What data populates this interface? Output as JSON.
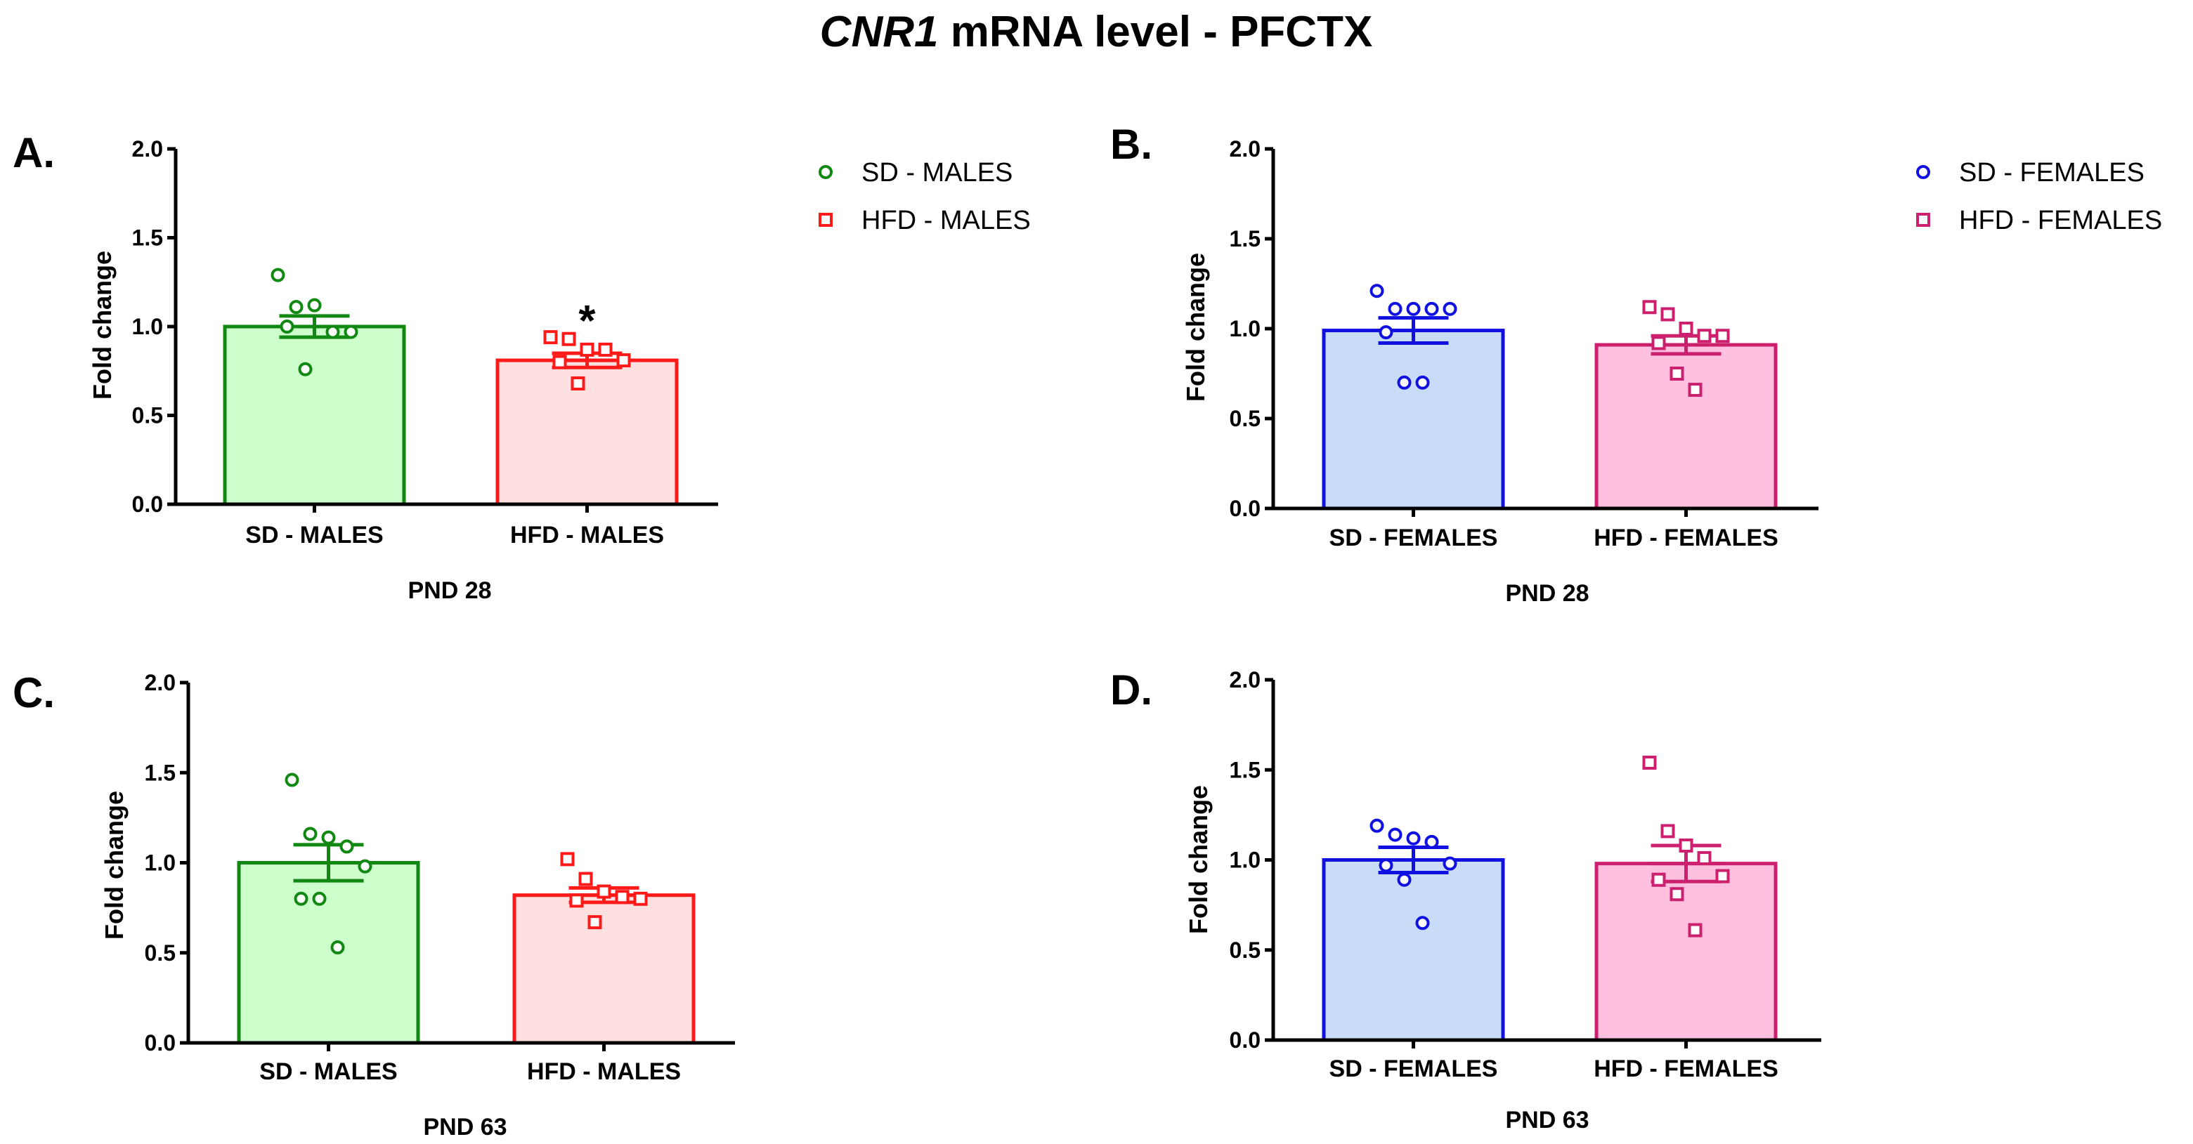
{
  "title": {
    "prefix": "CNR1",
    "suffix": " mRNA level - PFCTX"
  },
  "legends": [
    {
      "entries": [
        {
          "label": "SD - MALES",
          "color": "#118811",
          "marker": "circle"
        },
        {
          "label": "HFD - MALES",
          "color": "#ff1a1a",
          "marker": "square"
        }
      ]
    },
    {
      "entries": [
        {
          "label": "SD - FEMALES",
          "color": "#1010e0",
          "marker": "circle"
        },
        {
          "label": "HFD - FEMALES",
          "color": "#cc1f6e",
          "marker": "square"
        }
      ]
    }
  ],
  "chart_data": [
    {
      "panel": "A.",
      "type": "bar",
      "xlabel": "PND 28",
      "ylabel": "Fold change",
      "ylim": [
        0,
        2.0
      ],
      "yticks": [
        "0.0",
        "0.5",
        "1.0",
        "1.5",
        "2.0"
      ],
      "categories": [
        "SD - MALES",
        "HFD - MALES"
      ],
      "values": [
        1.0,
        0.81
      ],
      "sem": [
        0.06,
        0.04
      ],
      "points": [
        [
          1.29,
          1.11,
          1.12,
          0.97,
          0.97,
          1.0,
          0.76
        ],
        [
          0.94,
          0.93,
          0.87,
          0.87,
          0.81,
          0.8,
          0.68
        ]
      ],
      "fill_colors": [
        "#ccffcc",
        "#ffe0e0"
      ],
      "edge_colors": [
        "#118811",
        "#ff1a1a"
      ],
      "markers": [
        "circle",
        "square"
      ],
      "annotations": [
        {
          "category": "HFD - MALES",
          "text": "*"
        }
      ]
    },
    {
      "panel": "B.",
      "type": "bar",
      "xlabel": "PND 28",
      "ylabel": "Fold change",
      "ylim": [
        0,
        2.0
      ],
      "yticks": [
        "0.0",
        "0.5",
        "1.0",
        "1.5",
        "2.0"
      ],
      "categories": [
        "SD - FEMALES",
        "HFD - FEMALES"
      ],
      "values": [
        0.99,
        0.91
      ],
      "sem": [
        0.07,
        0.05
      ],
      "points": [
        [
          1.21,
          1.11,
          1.11,
          1.11,
          1.11,
          0.98,
          0.7,
          0.7
        ],
        [
          1.12,
          1.08,
          1.0,
          0.96,
          0.96,
          0.92,
          0.75,
          0.66
        ]
      ],
      "fill_colors": [
        "#c8dcf8",
        "#ffc0e0"
      ],
      "edge_colors": [
        "#1010e0",
        "#cc1f6e"
      ],
      "markers": [
        "circle",
        "square"
      ],
      "annotations": []
    },
    {
      "panel": "C.",
      "type": "bar",
      "xlabel": "PND 63",
      "ylabel": "Fold change",
      "ylim": [
        0,
        2.0
      ],
      "yticks": [
        "0.0",
        "0.5",
        "1.0",
        "1.5",
        "2.0"
      ],
      "categories": [
        "SD - MALES",
        "HFD - MALES"
      ],
      "values": [
        1.0,
        0.82
      ],
      "sem": [
        0.1,
        0.04
      ],
      "points": [
        [
          1.46,
          1.16,
          1.14,
          1.09,
          0.98,
          0.8,
          0.8,
          0.53
        ],
        [
          1.02,
          0.91,
          0.84,
          0.81,
          0.8,
          0.79,
          0.67
        ]
      ],
      "fill_colors": [
        "#ccffcc",
        "#ffe0e0"
      ],
      "edge_colors": [
        "#118811",
        "#ff1a1a"
      ],
      "markers": [
        "circle",
        "square"
      ],
      "annotations": []
    },
    {
      "panel": "D.",
      "type": "bar",
      "xlabel": "PND 63",
      "ylabel": "Fold change",
      "ylim": [
        0,
        2.0
      ],
      "yticks": [
        "0.0",
        "0.5",
        "1.0",
        "1.5",
        "2.0"
      ],
      "categories": [
        "SD - FEMALES",
        "HFD - FEMALES"
      ],
      "values": [
        1.0,
        0.98
      ],
      "sem": [
        0.07,
        0.1
      ],
      "points": [
        [
          1.19,
          1.14,
          1.12,
          1.1,
          0.98,
          0.97,
          0.89,
          0.65
        ],
        [
          1.54,
          1.16,
          1.08,
          1.01,
          0.91,
          0.89,
          0.81,
          0.61
        ]
      ],
      "fill_colors": [
        "#c8dcf8",
        "#ffc0e0"
      ],
      "edge_colors": [
        "#1010e0",
        "#cc1f6e"
      ],
      "markers": [
        "circle",
        "square"
      ],
      "annotations": []
    }
  ]
}
